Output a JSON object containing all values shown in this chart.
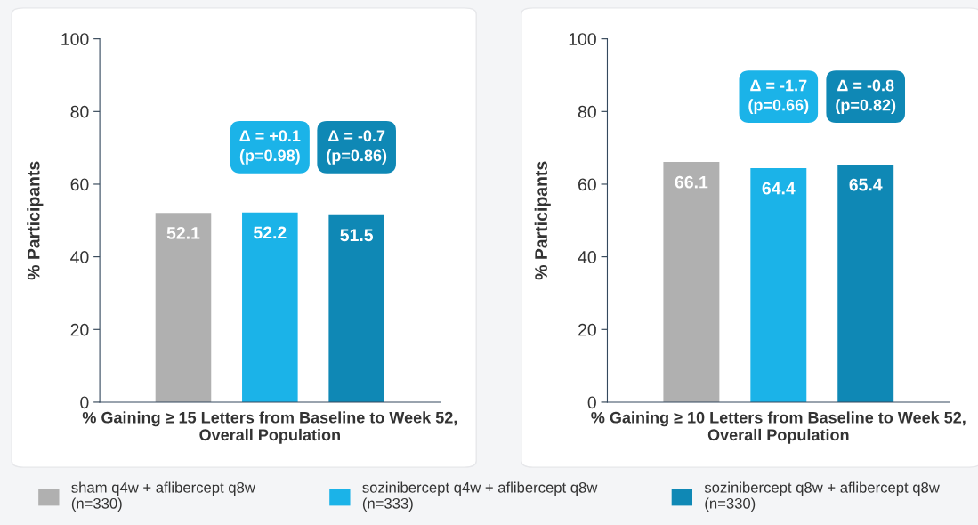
{
  "chart_data": [
    {
      "type": "bar",
      "categories": [
        null
      ],
      "xlabel": "% Gaining ≥ 15 Letters from Baseline to Week 52,\nOverall Population",
      "ylabel": "% Participants",
      "ylim": [
        0,
        100
      ],
      "yticks": [
        0,
        20,
        40,
        60,
        80,
        100
      ],
      "data_labels": true,
      "legend": "bottom",
      "grid": false,
      "series": [
        {
          "name": "sham q4w + aflibercept q8w\n(n=330)",
          "color": "#b0b0b0",
          "values": [
            52.1
          ]
        },
        {
          "name": "sozinibercept q4w + aflibercept q8w\n(n=333)",
          "color": "#1bb3e8",
          "values": [
            52.2
          ]
        },
        {
          "name": "sozinibercept q8w + aflibercept q8w\n(n=330)",
          "color": "#0f88b5",
          "values": [
            51.5
          ]
        }
      ],
      "annotations": [
        "Δ = +0.1\n(p=0.98)",
        "Δ = -0.7\n(p=0.86)"
      ]
    },
    {
      "type": "bar",
      "categories": [
        null
      ],
      "xlabel": "% Gaining ≥ 10 Letters from Baseline to Week 52,\nOverall Population",
      "ylabel": "% Participants",
      "ylim": [
        0,
        100
      ],
      "yticks": [
        0,
        20,
        40,
        60,
        80,
        100
      ],
      "data_labels": true,
      "grid": false,
      "series": [
        {
          "color": "#b0b0b0",
          "values": [
            66.1
          ]
        },
        {
          "color": "#1bb3e8",
          "values": [
            64.4
          ]
        },
        {
          "color": "#0f88b5",
          "values": [
            65.4
          ]
        }
      ],
      "annotations": [
        "Δ = -1.7\n(p=0.66)",
        "Δ = -0.8\n(p=0.82)"
      ]
    }
  ]
}
